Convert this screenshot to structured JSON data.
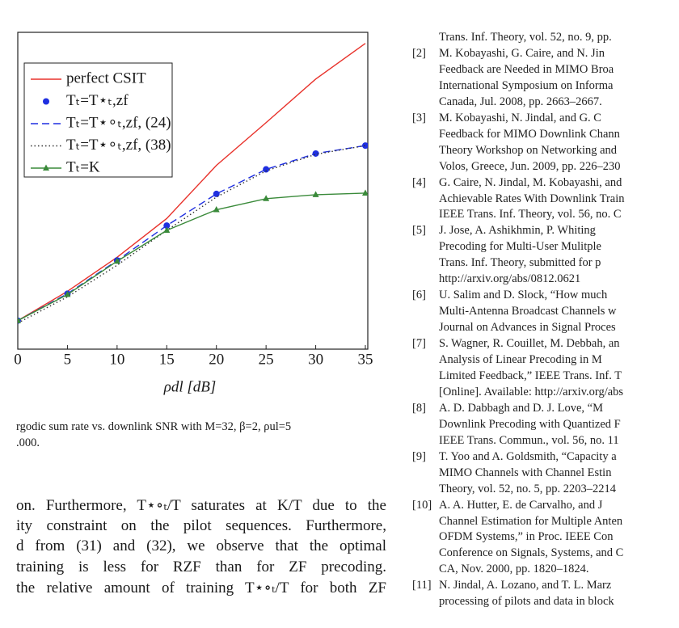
{
  "chart_data": {
    "type": "line",
    "x": [
      0,
      5,
      10,
      15,
      20,
      25,
      30,
      35
    ],
    "xlim": [
      0,
      35
    ],
    "xticks": [
      0,
      5,
      10,
      15,
      20,
      25,
      30,
      35
    ],
    "ylim": [
      0,
      40
    ],
    "x_label": "ρdl [dB]",
    "series": [
      {
        "name": "perfect CSIT",
        "color": "#e8322b",
        "linestyle": "solid",
        "marker": null,
        "values": [
          3.6,
          7.3,
          11.6,
          16.5,
          23.2,
          28.6,
          34.1,
          38.6
        ]
      },
      {
        "name": "Tₜ=T⋆ₜ,zf",
        "color": "#1f2fe0",
        "linestyle": "none",
        "marker": "circle",
        "values": [
          3.6,
          7.0,
          11.2,
          15.6,
          19.6,
          22.7,
          24.7,
          25.7
        ]
      },
      {
        "name": "Tₜ=T⋆∘ₜ,zf, (24)",
        "color": "#1f2fe0",
        "linestyle": "dashed",
        "marker": null,
        "values": [
          3.6,
          7.0,
          11.2,
          15.6,
          19.6,
          22.7,
          24.7,
          25.7
        ]
      },
      {
        "name": "Tₜ=T⋆∘ₜ,zf, (38)",
        "color": "#333333",
        "linestyle": "dotted",
        "marker": null,
        "values": [
          3.3,
          6.6,
          10.6,
          15.0,
          19.2,
          22.5,
          24.6,
          25.7
        ]
      },
      {
        "name": "Tₜ=K",
        "color": "#3a8a3a",
        "linestyle": "solid",
        "marker": "triangle",
        "values": [
          3.6,
          6.9,
          11.1,
          15.0,
          17.6,
          19.0,
          19.5,
          19.7
        ]
      }
    ]
  },
  "caption": [
    "rgodic sum rate vs. downlink SNR with M=32, β=2, ρul=5",
    ".000."
  ],
  "body": [
    "on. Furthermore, T⋆∘ₜ/T saturates at K/T due to the",
    "ity constraint on the pilot sequences. Furthermore,",
    "d from (31) and (32), we observe that the optimal",
    "training is less for RZF than for ZF precoding.",
    "the relative amount of training T⋆∘ₜ/T for both ZF"
  ],
  "references": [
    {
      "num": null,
      "lines": [
        "Trans. Inf. Theory, vol. 52, no. 9, pp."
      ]
    },
    {
      "num": "[2]",
      "lines": [
        "M. Kobayashi, G. Caire, and N. Jin",
        "Feedback are Needed in MIMO Broa",
        "International Symposium on Informa",
        "Canada, Jul. 2008, pp. 2663–2667."
      ]
    },
    {
      "num": "[3]",
      "lines": [
        "M. Kobayashi, N. Jindal, and G. C",
        "Feedback for MIMO Downlink Chann",
        "Theory Workshop on Networking and",
        "Volos, Greece, Jun. 2009, pp. 226–230"
      ]
    },
    {
      "num": "[4]",
      "lines": [
        "G. Caire, N. Jindal, M. Kobayashi, and",
        "Achievable Rates With Downlink Train",
        "IEEE Trans. Inf. Theory, vol. 56, no. C"
      ]
    },
    {
      "num": "[5]",
      "lines": [
        "J. Jose, A. Ashikhmin, P. Whiting",
        "Precoding for Multi-User Mulitple",
        "Trans. Inf. Theory, submitted for p",
        "http://arxiv.org/abs/0812.0621"
      ]
    },
    {
      "num": "[6]",
      "lines": [
        "U. Salim and D. Slock, “How much",
        "Multi-Antenna Broadcast Channels w",
        "Journal on Advances in Signal Proces"
      ]
    },
    {
      "num": "[7]",
      "lines": [
        "S. Wagner, R. Couillet, M. Debbah, an",
        "Analysis of Linear Precoding in M",
        "Limited Feedback,” IEEE Trans. Inf. T",
        "[Online]. Available: http://arxiv.org/abs"
      ]
    },
    {
      "num": "[8]",
      "lines": [
        "A. D. Dabbagh and D. J. Love, “M",
        "Downlink Precoding with Quantized F",
        "IEEE Trans. Commun., vol. 56, no. 11"
      ]
    },
    {
      "num": "[9]",
      "lines": [
        "T. Yoo and A. Goldsmith, “Capacity a",
        "MIMO Channels with Channel Estin",
        "Theory, vol. 52, no. 5, pp. 2203–2214"
      ]
    },
    {
      "num": "[10]",
      "lines": [
        "A. A. Hutter, E. de Carvalho, and J",
        "Channel Estimation for Multiple Anten",
        "OFDM Systems,” in Proc. IEEE Con",
        "Conference on Signals, Systems, and C",
        "CA, Nov. 2000, pp. 1820–1824."
      ]
    },
    {
      "num": "[11]",
      "lines": [
        "N. Jindal, A. Lozano, and T. L. Marz",
        "processing of pilots and data in block"
      ]
    }
  ]
}
